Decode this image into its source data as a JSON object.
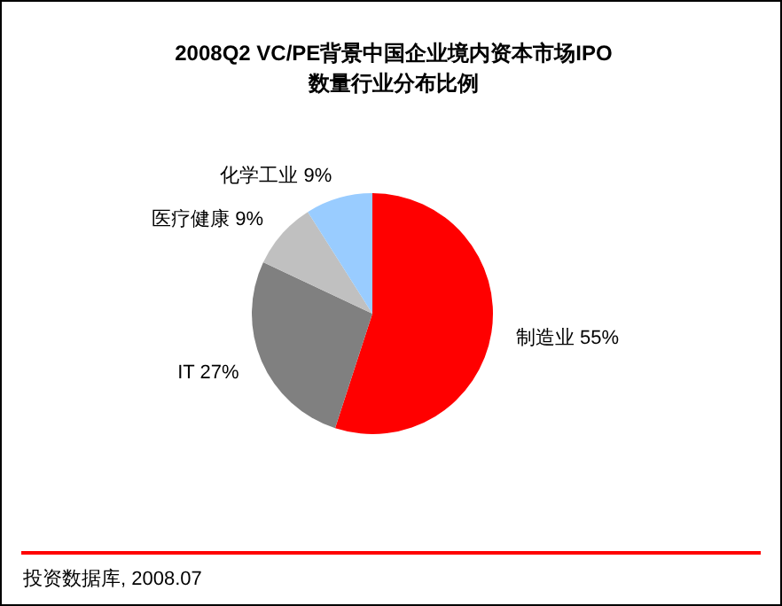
{
  "chart_data": {
    "type": "pie",
    "title": "2008Q2 VC/PE背景中国企业境内资本市场IPO\n数量行业分布比例",
    "categories": [
      "制造业",
      "IT",
      "医疗健康",
      "化学工业"
    ],
    "values": [
      55,
      27,
      9,
      9
    ],
    "value_labels": [
      "55%",
      "27%",
      "9%",
      "9%"
    ],
    "colors": [
      "#ff0000",
      "#808080",
      "#c0c0c0",
      "#99ccff"
    ],
    "annotations": [
      "投资数据库, 2008.07"
    ],
    "legend": false
  }
}
